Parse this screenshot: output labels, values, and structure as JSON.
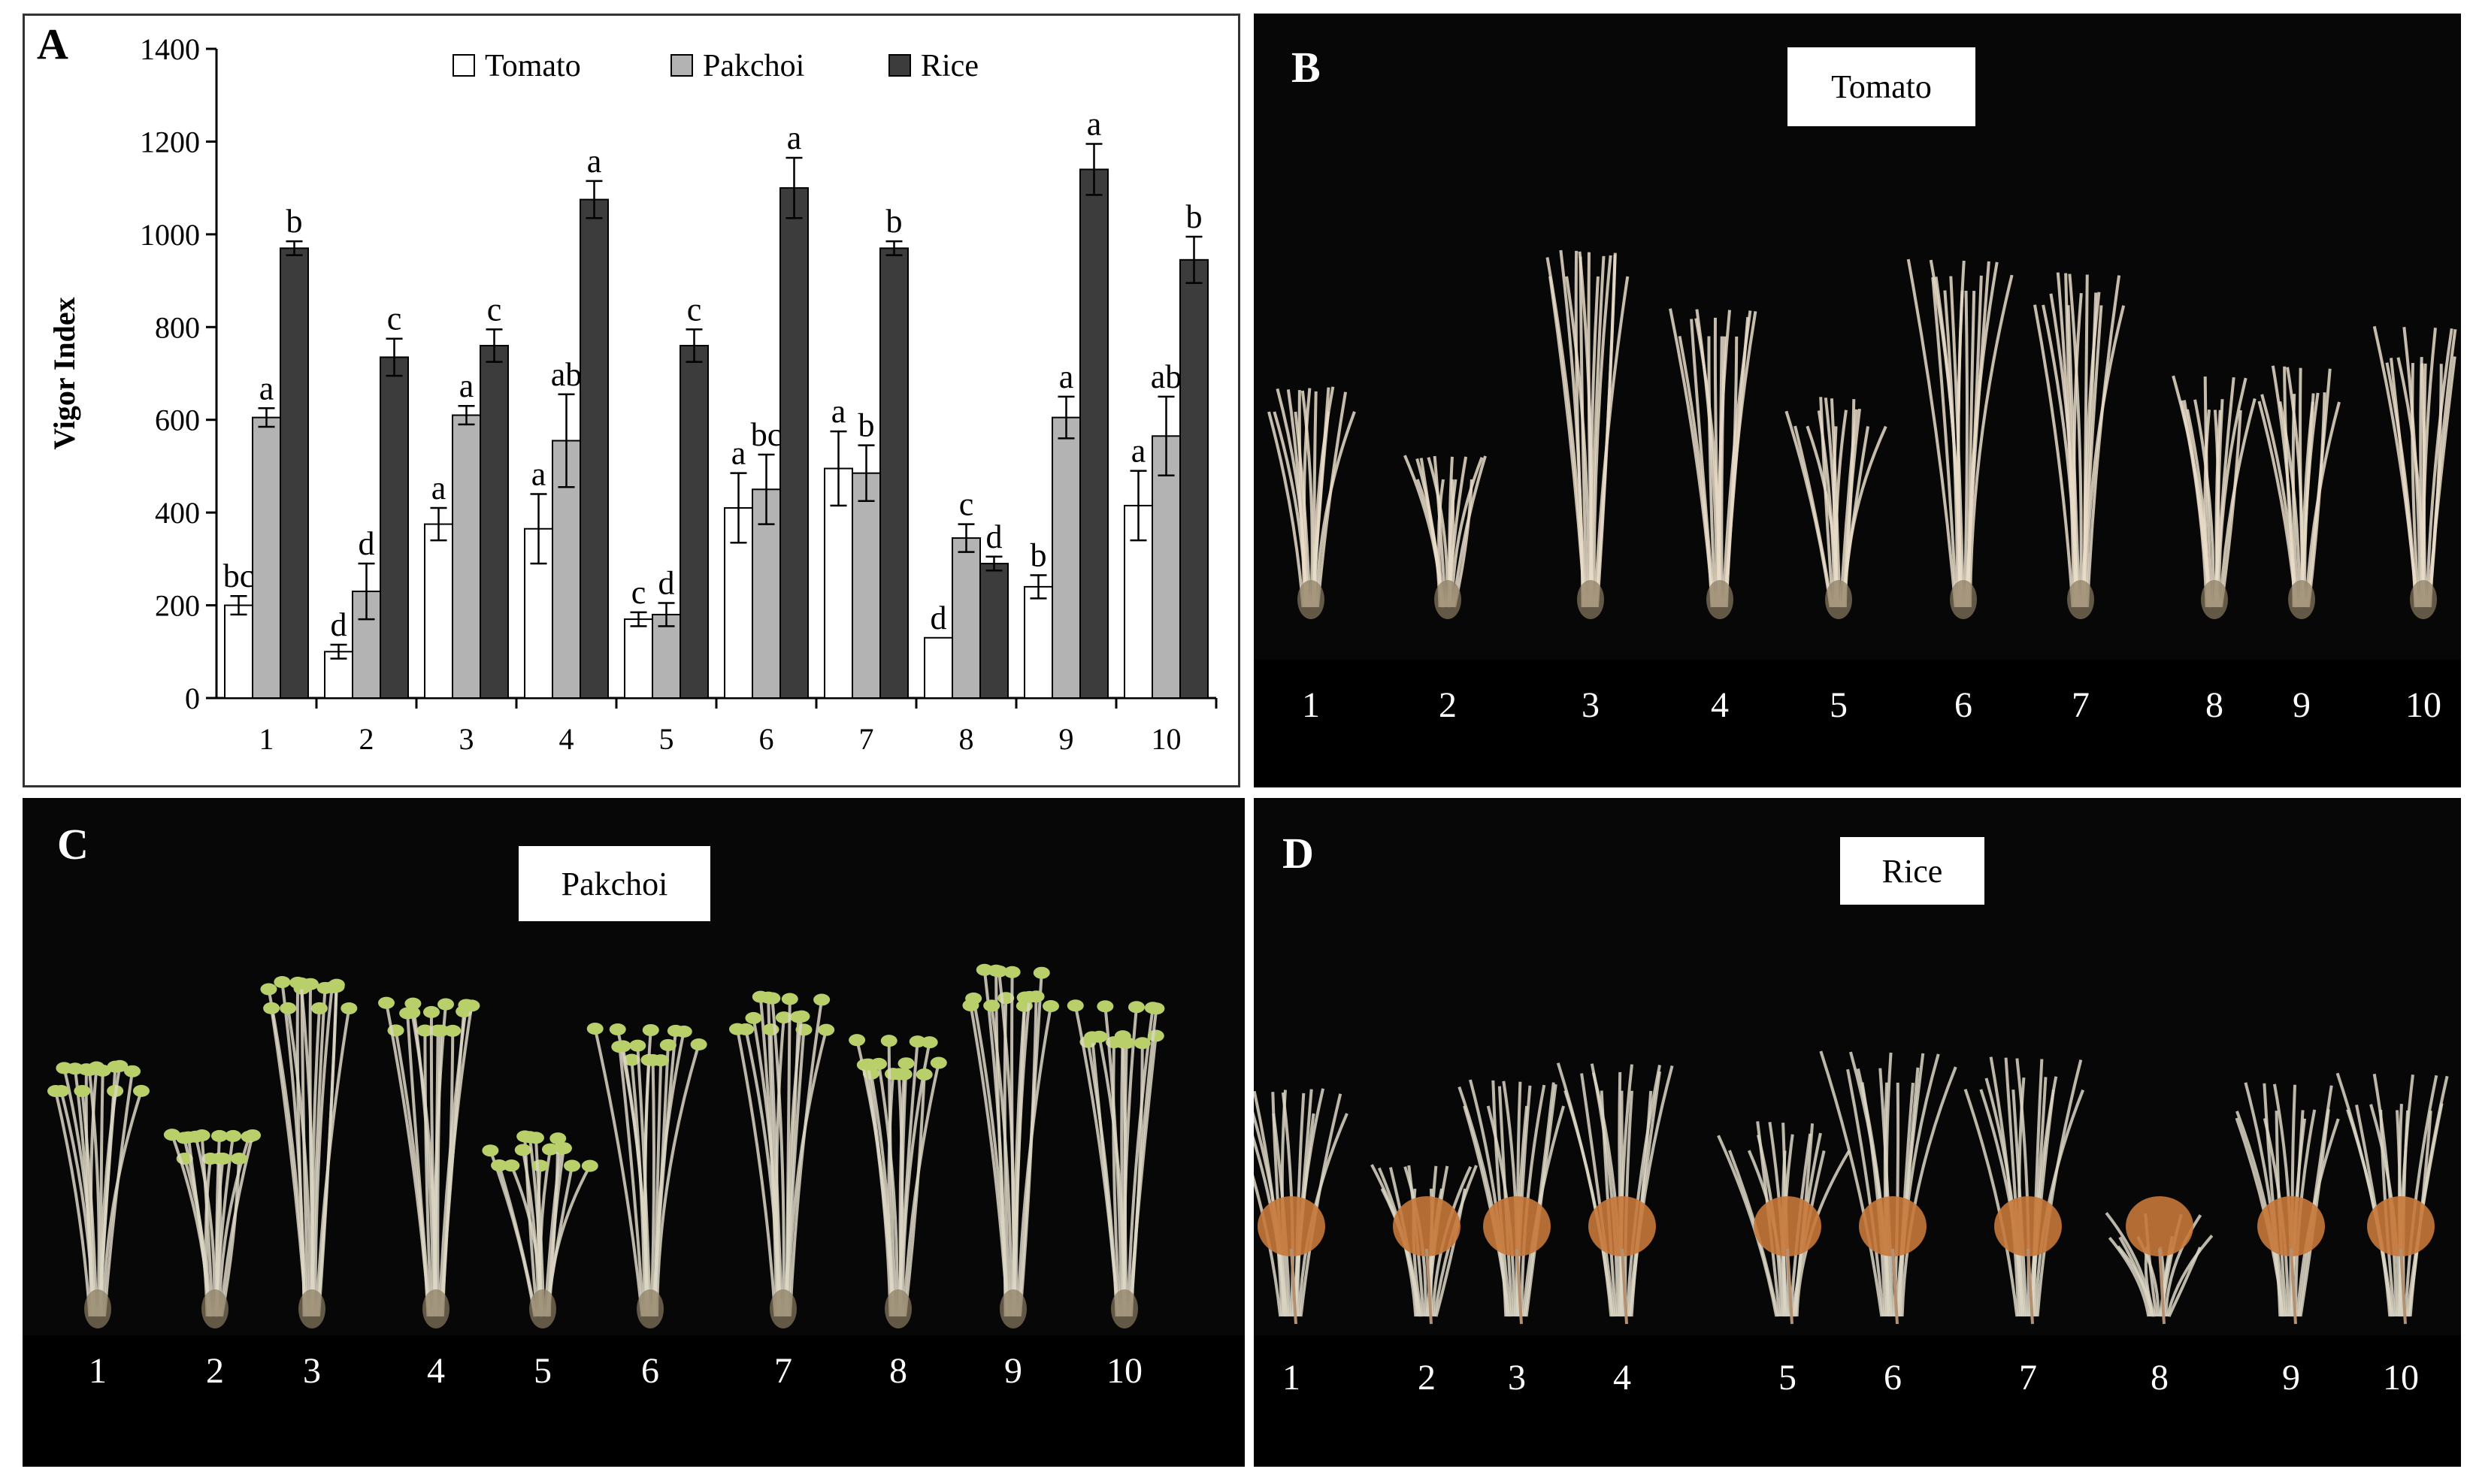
{
  "panels": {
    "a": {
      "letter": "A"
    },
    "b": {
      "letter": "B",
      "crop": "Tomato"
    },
    "c": {
      "letter": "C",
      "crop": "Pakchoi"
    },
    "d": {
      "letter": "D",
      "crop": "Rice"
    }
  },
  "sample_labels": [
    "1",
    "2",
    "3",
    "4",
    "5",
    "6",
    "7",
    "8",
    "9",
    "10"
  ],
  "colors": {
    "tomato": "#ffffff",
    "pakchoi": "#b3b3b3",
    "rice": "#3c3c3c",
    "photo_bg": "#070707",
    "tomato_seedling": "#e8dcc8",
    "pakchoi_leaf": "#b8cf6a",
    "rice_root": "#c7783a"
  },
  "chart_data": {
    "type": "bar",
    "ylabel": "Vigor Index",
    "xlabel": "",
    "ylim": [
      0,
      1400
    ],
    "yticks": [
      0,
      200,
      400,
      600,
      800,
      1000,
      1200,
      1400
    ],
    "categories": [
      "1",
      "2",
      "3",
      "4",
      "5",
      "6",
      "7",
      "8",
      "9",
      "10"
    ],
    "legend_position": "top",
    "series": [
      {
        "name": "Tomato",
        "color": "#ffffff",
        "values": [
          200,
          100,
          375,
          365,
          170,
          410,
          495,
          130,
          240,
          415
        ],
        "errors": [
          20,
          15,
          35,
          75,
          15,
          75,
          80,
          0,
          25,
          75
        ],
        "letters": [
          "bc",
          "d",
          "a",
          "a",
          "c",
          "a",
          "a",
          "d",
          "b",
          "a"
        ]
      },
      {
        "name": "Pakchoi",
        "color": "#b3b3b3",
        "values": [
          605,
          230,
          610,
          555,
          180,
          450,
          485,
          345,
          605,
          565
        ],
        "errors": [
          20,
          60,
          20,
          100,
          25,
          75,
          60,
          30,
          45,
          85
        ],
        "letters": [
          "a",
          "d",
          "a",
          "ab",
          "d",
          "bc",
          "b",
          "c",
          "a",
          "ab"
        ]
      },
      {
        "name": "Rice",
        "color": "#3c3c3c",
        "values": [
          970,
          735,
          760,
          1075,
          760,
          1100,
          970,
          290,
          1140,
          945
        ],
        "errors": [
          15,
          40,
          35,
          40,
          35,
          65,
          15,
          15,
          55,
          50
        ],
        "letters": [
          "b",
          "c",
          "c",
          "a",
          "c",
          "a",
          "b",
          "d",
          "a",
          "b"
        ]
      }
    ]
  }
}
